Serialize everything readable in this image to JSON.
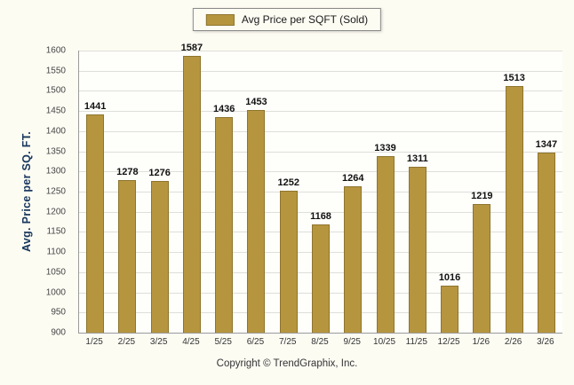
{
  "chart_data": {
    "type": "bar",
    "legend": "Avg Price per SQFT (Sold)",
    "ylabel": "Avg. Price per SQ. FT.",
    "xlabel": "",
    "categories": [
      "1/25",
      "2/25",
      "3/25",
      "4/25",
      "5/25",
      "6/25",
      "7/25",
      "8/25",
      "9/25",
      "10/25",
      "11/25",
      "12/25",
      "1/26",
      "2/26",
      "3/26"
    ],
    "values": [
      1441,
      1278,
      1276,
      1587,
      1436,
      1453,
      1252,
      1168,
      1264,
      1339,
      1311,
      1016,
      1219,
      1513,
      1347
    ],
    "ylim": [
      900,
      1600
    ],
    "ytick_step": 50,
    "grid": true,
    "legend_position": "top",
    "bar_color": "#B6953F",
    "bar_border_color": "#8E742E"
  },
  "footer": {
    "copyright": "Copyright © TrendGraphix, Inc."
  }
}
